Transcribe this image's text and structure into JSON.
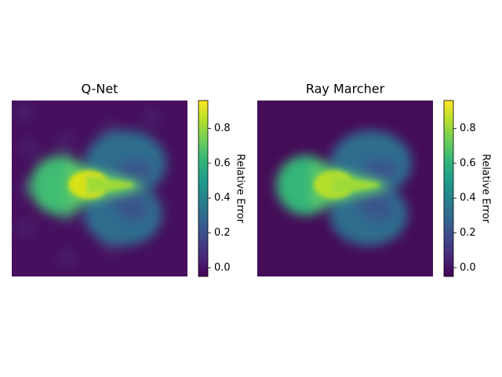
{
  "chart_data": [
    {
      "type": "heatmap",
      "title": "Q-Net",
      "colorbar_label": "Relative Error",
      "cmap": "viridis",
      "clim": [
        -0.05,
        0.96
      ],
      "ticks": [
        {
          "value": 0,
          "label": "0.0"
        },
        {
          "value": 0.2,
          "label": "0.2"
        },
        {
          "value": 0.4,
          "label": "0.4"
        },
        {
          "value": 0.6,
          "label": "0.6"
        },
        {
          "value": 0.8,
          "label": "0.8"
        }
      ]
    },
    {
      "type": "heatmap",
      "title": "Ray Marcher",
      "colorbar_label": "Relative Error",
      "cmap": "viridis",
      "clim": [
        -0.05,
        0.96
      ],
      "ticks": [
        {
          "value": 0,
          "label": "0.0"
        },
        {
          "value": 0.2,
          "label": "0.2"
        },
        {
          "value": 0.4,
          "label": "0.4"
        },
        {
          "value": 0.6,
          "label": "0.6"
        },
        {
          "value": 0.8,
          "label": "0.8"
        }
      ]
    }
  ]
}
